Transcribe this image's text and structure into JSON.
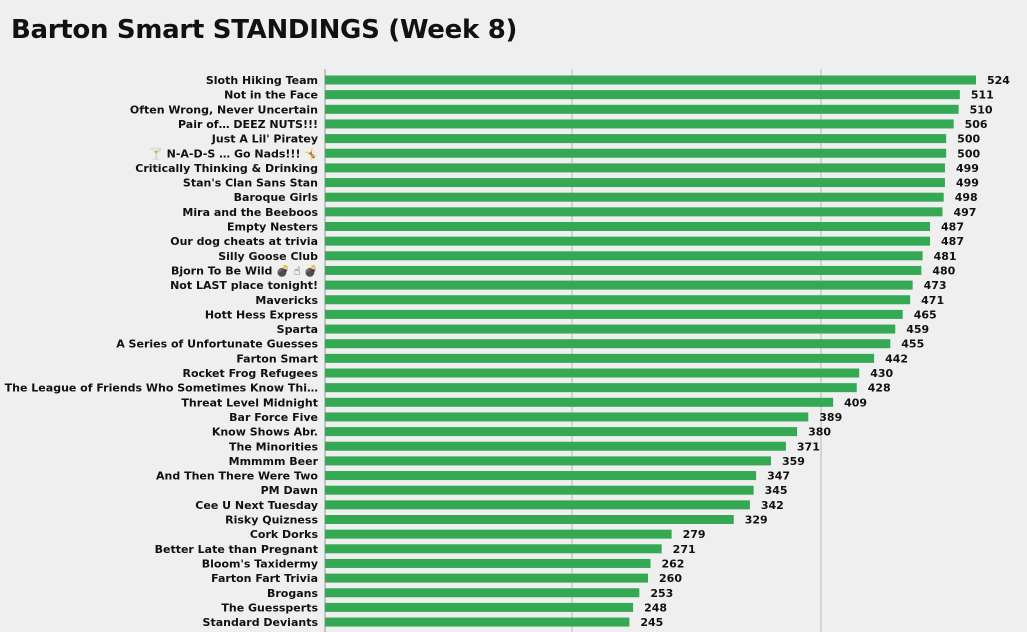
{
  "chart_data": {
    "type": "bar",
    "orientation": "horizontal",
    "title": "Barton Smart STANDINGS (Week 8)",
    "xlabel": "",
    "ylabel": "",
    "xlim": [
      0,
      524
    ],
    "grid": true,
    "bar_color": "#34a853",
    "categories": [
      "Sloth Hiking Team",
      "Not in the Face",
      "Often Wrong, Never Uncertain",
      "Pair of… DEEZ NUTS!!!",
      "Just A Lil' Piratey",
      "🍸 N-A-D-S … Go Nads!!! 🤸",
      "Critically Thinking & Drinking",
      "Stan's Clan Sans Stan",
      "Baroque Girls",
      "Mira and the Beeboos",
      "Empty Nesters",
      "Our dog cheats at trivia",
      "Silly Goose Club",
      "Bjorn To Be Wild 💣 ☝ 💣",
      "Not LAST place tonight!",
      "Mavericks",
      "Hott Hess Express",
      "Sparta",
      "A Series of Unfortunate Guesses",
      "Farton Smart",
      "Rocket Frog Refugees",
      "The League of Friends Who Sometimes Know Thi…",
      "Threat Level Midnight",
      "Bar Force Five",
      "Know Shows Abr.",
      "The Minorities",
      "Mmmmm Beer",
      "And Then There Were Two",
      "PM Dawn",
      "Cee U Next Tuesday",
      "Risky Quizness",
      "Cork Dorks",
      "Better Late than Pregnant",
      "Bloom's Taxidermy",
      "Farton Fart Trivia",
      "Brogans",
      "The Guessperts",
      "Standard Deviants"
    ],
    "values": [
      524,
      511,
      510,
      506,
      500,
      500,
      499,
      499,
      498,
      497,
      487,
      487,
      481,
      480,
      473,
      471,
      465,
      459,
      455,
      442,
      430,
      428,
      409,
      389,
      380,
      371,
      359,
      347,
      345,
      342,
      329,
      279,
      271,
      262,
      260,
      253,
      248,
      245
    ]
  }
}
